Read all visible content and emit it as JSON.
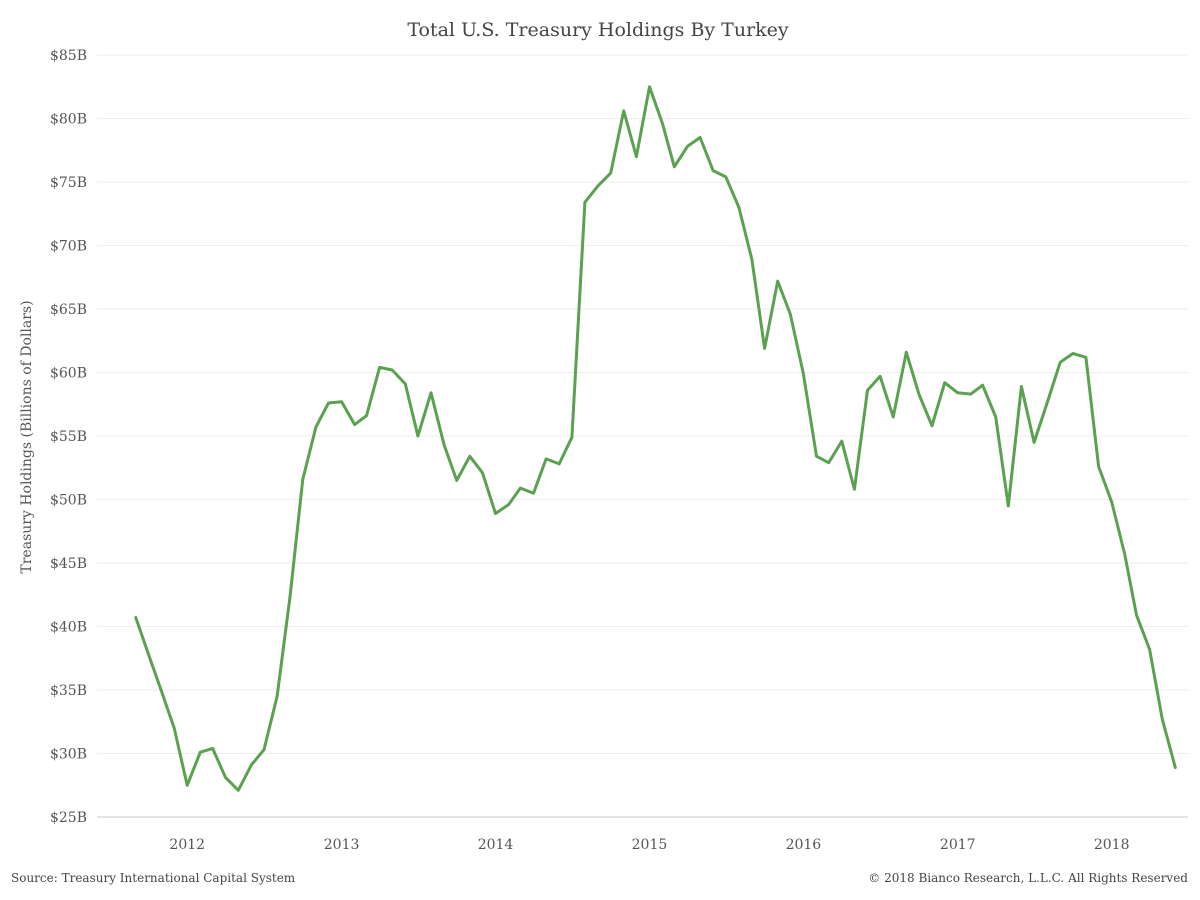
{
  "chart_data": {
    "type": "line",
    "title": "Total U.S. Treasury Holdings By Turkey",
    "xlabel": "",
    "ylabel": "Treasury Holdings (Billions of Dollars)",
    "ylim": [
      25,
      85
    ],
    "xlim": [
      "2011-06-01",
      "2018-07-01"
    ],
    "y_ticks": [
      {
        "value": 25,
        "label": "$25B"
      },
      {
        "value": 30,
        "label": "$30B"
      },
      {
        "value": 35,
        "label": "$35B"
      },
      {
        "value": 40,
        "label": "$40B"
      },
      {
        "value": 45,
        "label": "$45B"
      },
      {
        "value": 50,
        "label": "$50B"
      },
      {
        "value": 55,
        "label": "$55B"
      },
      {
        "value": 60,
        "label": "$60B"
      },
      {
        "value": 65,
        "label": "$65B"
      },
      {
        "value": 70,
        "label": "$70B"
      },
      {
        "value": 75,
        "label": "$75B"
      },
      {
        "value": 80,
        "label": "$80B"
      },
      {
        "value": 85,
        "label": "$85B"
      }
    ],
    "x_ticks": [
      {
        "value": "2012-01-01",
        "label": "2012"
      },
      {
        "value": "2013-01-01",
        "label": "2013"
      },
      {
        "value": "2014-01-01",
        "label": "2014"
      },
      {
        "value": "2015-01-01",
        "label": "2015"
      },
      {
        "value": "2016-01-01",
        "label": "2016"
      },
      {
        "value": "2017-01-01",
        "label": "2017"
      },
      {
        "value": "2018-01-01",
        "label": "2018"
      }
    ],
    "grid": true,
    "legend": "none",
    "series": [
      {
        "color": "#5aa150",
        "x": [
          "2011-09",
          "2011-10",
          "2011-11",
          "2011-12",
          "2012-01",
          "2012-02",
          "2012-03",
          "2012-04",
          "2012-05",
          "2012-06",
          "2012-07",
          "2012-08",
          "2012-09",
          "2012-10",
          "2012-11",
          "2012-12",
          "2013-01",
          "2013-02",
          "2013-03",
          "2013-04",
          "2013-05",
          "2013-06",
          "2013-07",
          "2013-08",
          "2013-09",
          "2013-10",
          "2013-11",
          "2013-12",
          "2014-01",
          "2014-02",
          "2014-03",
          "2014-04",
          "2014-05",
          "2014-06",
          "2014-07",
          "2014-08",
          "2014-09",
          "2014-10",
          "2014-11",
          "2014-12",
          "2015-01",
          "2015-02",
          "2015-03",
          "2015-04",
          "2015-05",
          "2015-06",
          "2015-07",
          "2015-08",
          "2015-09",
          "2015-10",
          "2015-11",
          "2015-12",
          "2016-01",
          "2016-02",
          "2016-03",
          "2016-04",
          "2016-05",
          "2016-06",
          "2016-07",
          "2016-08",
          "2016-09",
          "2016-10",
          "2016-11",
          "2016-12",
          "2017-01",
          "2017-02",
          "2017-03",
          "2017-04",
          "2017-05",
          "2017-06",
          "2017-07",
          "2017-08",
          "2017-09",
          "2017-10",
          "2017-11",
          "2017-12",
          "2018-01",
          "2018-02",
          "2018-03",
          "2018-04",
          "2018-05",
          "2018-06"
        ],
        "values": [
          40.7,
          37.8,
          34.9,
          32.0,
          27.5,
          30.1,
          30.4,
          28.1,
          27.1,
          29.1,
          30.3,
          34.5,
          42.4,
          51.6,
          55.7,
          57.6,
          57.7,
          55.9,
          56.6,
          60.4,
          60.2,
          59.1,
          55.0,
          58.4,
          54.3,
          51.5,
          53.4,
          52.1,
          48.9,
          49.6,
          50.9,
          50.5,
          53.2,
          52.8,
          54.9,
          73.4,
          74.7,
          75.7,
          80.6,
          77.0,
          82.5,
          79.6,
          76.2,
          77.8,
          78.5,
          75.9,
          75.4,
          73.0,
          68.9,
          61.9,
          67.2,
          64.6,
          59.9,
          53.4,
          52.9,
          54.6,
          50.8,
          58.6,
          59.7,
          56.5,
          61.6,
          58.3,
          55.8,
          59.2,
          58.4,
          58.3,
          59.0,
          56.5,
          49.5,
          58.9,
          54.5,
          57.6,
          60.8,
          61.5,
          61.2,
          52.6,
          49.8,
          45.7,
          40.9,
          38.2,
          32.7,
          28.9
        ]
      }
    ]
  },
  "footer": {
    "source": "Source: Treasury International Capital System",
    "copyright": "© 2018 Bianco Research, L.L.C. All Rights Reserved"
  }
}
